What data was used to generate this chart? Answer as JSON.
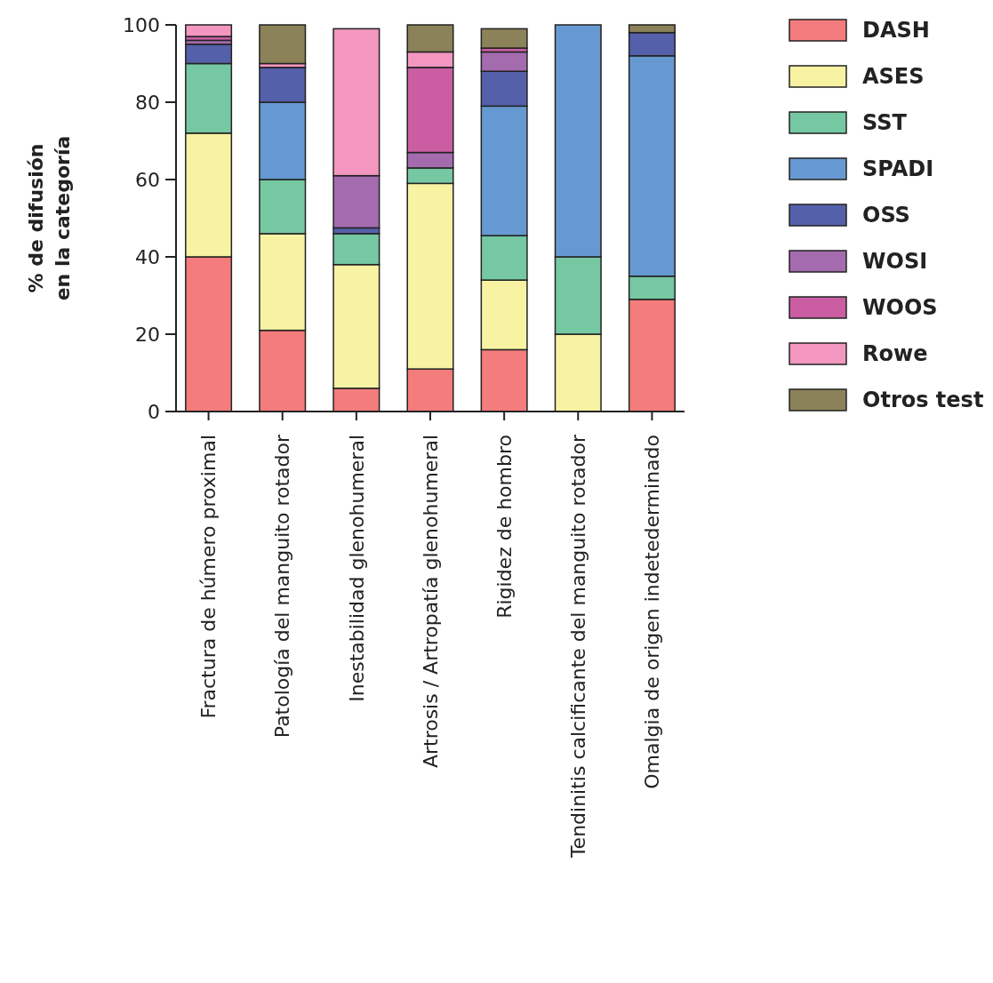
{
  "chart_data": {
    "type": "bar",
    "stacked": true,
    "ylabel": "% de difusión\nen la categoría",
    "categories": [
      "Fractura de húmero proximal",
      "Patología del manguito rotador",
      "Inestabilidad glenohumeral",
      "Artrosis / Artropatía glenohumeral",
      "Rigidez de hombro",
      "Tendinitis calcificante del manguito rotador",
      "Omalgia de origen indetederminado"
    ],
    "series": [
      {
        "name": "DASH",
        "color": "#f47c7c",
        "values": [
          40,
          21,
          6,
          11,
          16,
          0,
          29
        ]
      },
      {
        "name": "ASES",
        "color": "#f7f3a3",
        "values": [
          32,
          25,
          32,
          48,
          18,
          20,
          0
        ]
      },
      {
        "name": "SST",
        "color": "#76c8a2",
        "values": [
          18,
          14,
          8,
          4,
          11.5,
          20,
          6
        ]
      },
      {
        "name": "SPADI",
        "color": "#6699d1",
        "values": [
          0,
          20,
          0,
          0,
          33.5,
          60,
          57
        ]
      },
      {
        "name": "OSS",
        "color": "#5560ab",
        "values": [
          5,
          9,
          1.5,
          0,
          9,
          0,
          6
        ]
      },
      {
        "name": "WOSI",
        "color": "#a46bae",
        "values": [
          1,
          0,
          13.5,
          4,
          5,
          0,
          0
        ]
      },
      {
        "name": "WOOS",
        "color": "#cb5ea3",
        "values": [
          1,
          0,
          0,
          22,
          1,
          0,
          0
        ]
      },
      {
        "name": "Rowe",
        "color": "#f497c0",
        "values": [
          3,
          1,
          38,
          4,
          0,
          0,
          0
        ]
      },
      {
        "name": "Otros test",
        "color": "#8b8259",
        "values": [
          0,
          10,
          0,
          7,
          5,
          0,
          2
        ]
      }
    ],
    "ylim": [
      0,
      100
    ],
    "yticks": [
      0,
      20,
      40,
      60,
      80,
      100
    ],
    "grid": false,
    "legend": "top right"
  }
}
